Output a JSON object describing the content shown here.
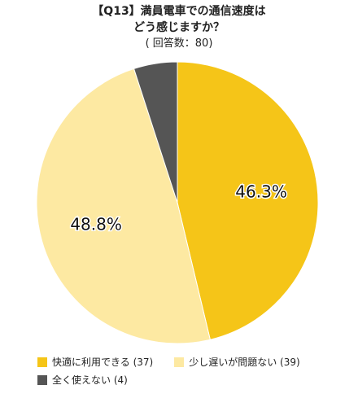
{
  "header": {
    "line1": "【Q13】満員電車での通信速度は",
    "line2": "どう感じますか？",
    "line3": "( 回答数：80)"
  },
  "chart_data": {
    "type": "pie",
    "slices": [
      {
        "name": "快適に利用できる (37)",
        "value": 46.3,
        "label": "46.3%",
        "color": "#f5c518"
      },
      {
        "name": "少し遅いが問題ない (39)",
        "value": 48.8,
        "label": "48.8%",
        "color": "#fde9a2"
      },
      {
        "name": "全く使えない (4)",
        "value": 5.0,
        "label": "",
        "color": "#555555"
      }
    ],
    "start_angle_deg": 0,
    "direction": "clockwise",
    "legend_position": "bottom"
  }
}
